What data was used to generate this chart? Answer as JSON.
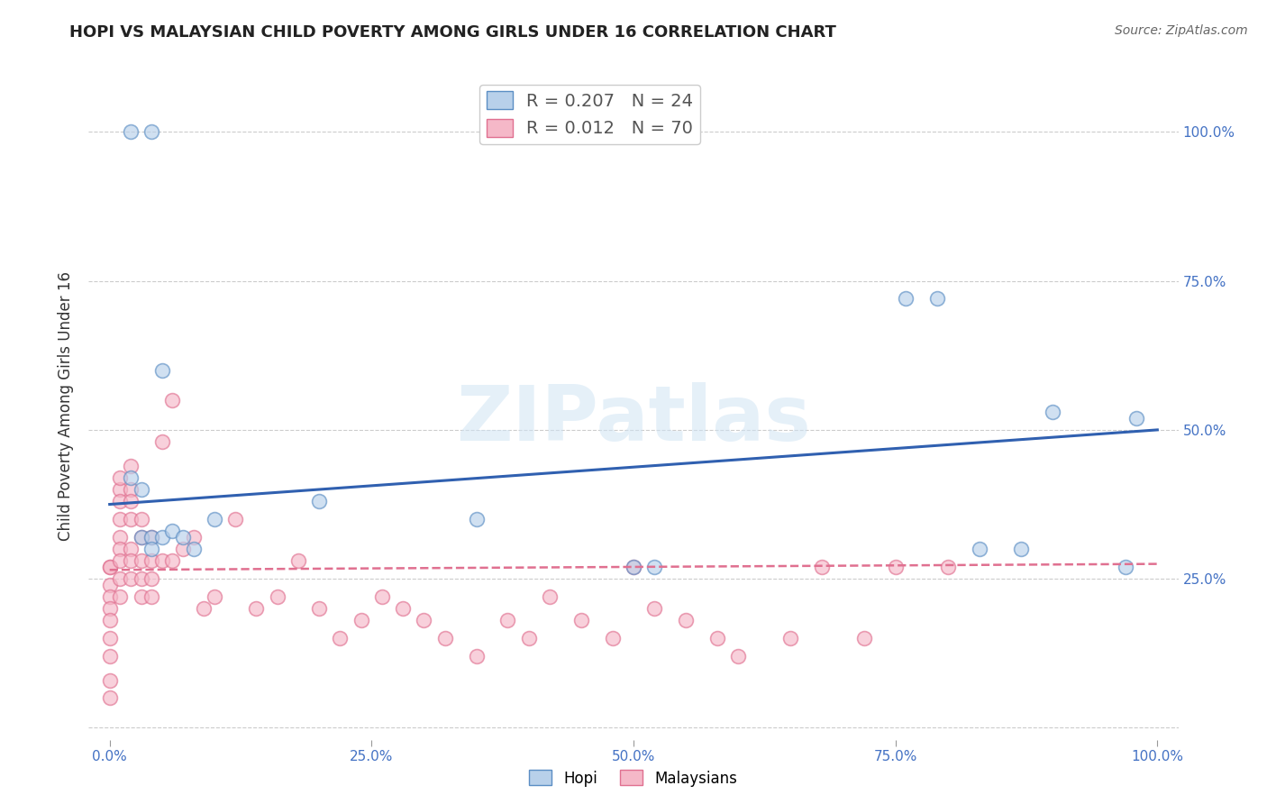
{
  "title": "HOPI VS MALAYSIAN CHILD POVERTY AMONG GIRLS UNDER 16 CORRELATION CHART",
  "source": "Source: ZipAtlas.com",
  "ylabel": "Child Poverty Among Girls Under 16",
  "watermark": "ZIPatlas",
  "background_color": "#ffffff",
  "title_color": "#222222",
  "source_color": "#666666",
  "tick_color": "#4472c4",
  "grid_color": "#cccccc",
  "hopi_color": "#b8d0ea",
  "hopi_edge_color": "#5b8ec4",
  "malaysian_color": "#f5b8c8",
  "malaysian_edge_color": "#e07090",
  "hopi_line_color": "#3060b0",
  "malaysian_line_color": "#e07090",
  "legend_hopi_R": "0.207",
  "legend_hopi_N": "24",
  "legend_mal_R": "0.012",
  "legend_mal_N": "70",
  "hopi_x": [
    0.02,
    0.04,
    0.02,
    0.03,
    0.03,
    0.04,
    0.05,
    0.04,
    0.05,
    0.06,
    0.07,
    0.08,
    0.1,
    0.2,
    0.35,
    0.5,
    0.52,
    0.76,
    0.79,
    0.83,
    0.87,
    0.9,
    0.97,
    0.98
  ],
  "hopi_y": [
    1.0,
    1.0,
    0.42,
    0.4,
    0.32,
    0.32,
    0.6,
    0.3,
    0.32,
    0.33,
    0.32,
    0.3,
    0.35,
    0.38,
    0.35,
    0.27,
    0.27,
    0.72,
    0.72,
    0.3,
    0.3,
    0.53,
    0.27,
    0.52
  ],
  "malaysian_x": [
    0.0,
    0.0,
    0.0,
    0.0,
    0.0,
    0.0,
    0.0,
    0.0,
    0.0,
    0.0,
    0.01,
    0.01,
    0.01,
    0.01,
    0.01,
    0.01,
    0.01,
    0.01,
    0.01,
    0.02,
    0.02,
    0.02,
    0.02,
    0.02,
    0.02,
    0.02,
    0.03,
    0.03,
    0.03,
    0.03,
    0.03,
    0.04,
    0.04,
    0.04,
    0.04,
    0.05,
    0.05,
    0.06,
    0.06,
    0.07,
    0.08,
    0.09,
    0.1,
    0.12,
    0.14,
    0.16,
    0.18,
    0.2,
    0.22,
    0.24,
    0.26,
    0.28,
    0.3,
    0.32,
    0.35,
    0.38,
    0.4,
    0.42,
    0.45,
    0.48,
    0.5,
    0.52,
    0.55,
    0.58,
    0.6,
    0.65,
    0.68,
    0.72,
    0.75,
    0.8
  ],
  "malaysian_y": [
    0.27,
    0.27,
    0.24,
    0.22,
    0.2,
    0.18,
    0.15,
    0.12,
    0.08,
    0.05,
    0.4,
    0.42,
    0.38,
    0.35,
    0.32,
    0.3,
    0.28,
    0.25,
    0.22,
    0.44,
    0.4,
    0.38,
    0.35,
    0.3,
    0.28,
    0.25,
    0.35,
    0.32,
    0.28,
    0.25,
    0.22,
    0.32,
    0.28,
    0.25,
    0.22,
    0.48,
    0.28,
    0.55,
    0.28,
    0.3,
    0.32,
    0.2,
    0.22,
    0.35,
    0.2,
    0.22,
    0.28,
    0.2,
    0.15,
    0.18,
    0.22,
    0.2,
    0.18,
    0.15,
    0.12,
    0.18,
    0.15,
    0.22,
    0.18,
    0.15,
    0.27,
    0.2,
    0.18,
    0.15,
    0.12,
    0.15,
    0.27,
    0.15,
    0.27,
    0.27
  ],
  "marker_size": 130,
  "marker_alpha": 0.65,
  "xlim": [
    -0.02,
    1.02
  ],
  "ylim": [
    -0.02,
    1.1
  ],
  "xticks": [
    0.0,
    0.25,
    0.5,
    0.75,
    1.0
  ],
  "yticks": [
    0.0,
    0.25,
    0.5,
    0.75,
    1.0
  ],
  "xticklabels": [
    "0.0%",
    "25.0%",
    "50.0%",
    "75.0%",
    "100.0%"
  ],
  "right_yticklabels": [
    "",
    "25.0%",
    "50.0%",
    "75.0%",
    "100.0%"
  ]
}
